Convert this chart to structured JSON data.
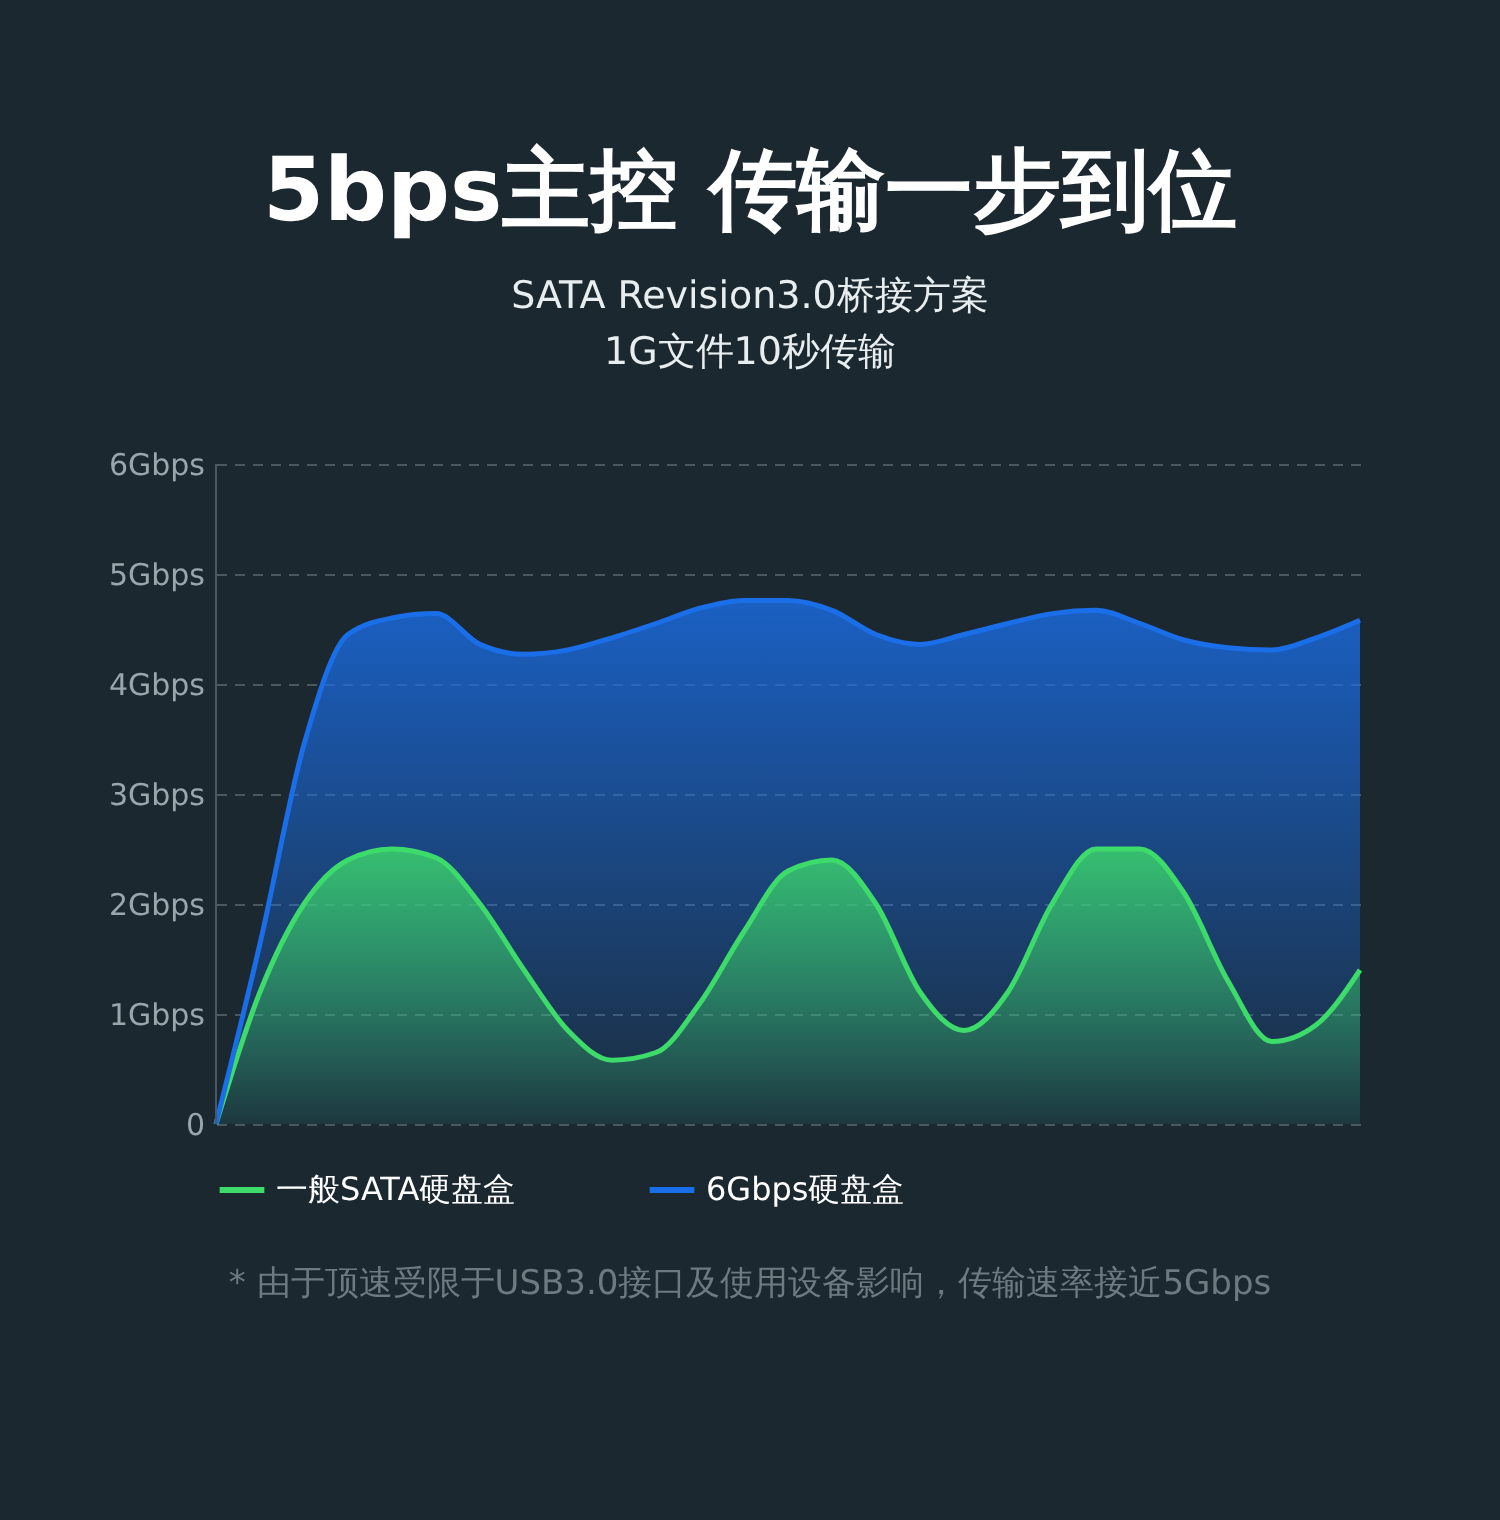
{
  "chart_data": {
    "type": "area",
    "title": "5bps主控  传输一步到位",
    "subtitle": "SATA Revision3.0桥接方案\n1G文件10秒传输",
    "categories": [
      null,
      null,
      null,
      null,
      null,
      null,
      null,
      null,
      null,
      null,
      null,
      null,
      null,
      null,
      null,
      null,
      null,
      null,
      null,
      null,
      null,
      null,
      null,
      null,
      null,
      null,
      null
    ],
    "series": [
      {
        "name": "一般SATA硬盘盒",
        "color": "#3ddc6a",
        "values": [
          0,
          1.2,
          2.0,
          2.4,
          2.5,
          2.42,
          2.0,
          1.4,
          0.85,
          0.58,
          0.65,
          1.1,
          1.75,
          2.3,
          2.4,
          2.0,
          1.2,
          0.85,
          1.2,
          2.0,
          2.5,
          2.5,
          2.1,
          1.3,
          0.75,
          0.9,
          1.4
        ]
      },
      {
        "name": "6Gbps硬盘盒",
        "color": "#1a6ee8",
        "values": [
          0,
          1.64,
          3.45,
          4.45,
          4.6,
          4.64,
          4.36,
          4.27,
          4.31,
          4.42,
          4.55,
          4.69,
          4.76,
          4.76,
          4.67,
          4.45,
          4.36,
          4.45,
          4.55,
          4.64,
          4.67,
          4.55,
          4.4,
          4.33,
          4.31,
          4.42,
          4.58
        ]
      }
    ],
    "ylim": [
      0,
      6
    ],
    "yticks": [
      0,
      {
        "value": 1,
        "label": "1Gbps"
      },
      {
        "value": 2,
        "label": "2Gbps"
      },
      {
        "value": 3,
        "label": "3Gbps"
      },
      {
        "value": 4,
        "label": "4Gbps"
      },
      {
        "value": 5,
        "label": "5Gbps"
      },
      {
        "value": 6,
        "label": "6Gbps"
      }
    ],
    "grid": "y",
    "legend": "bottom",
    "annotations": [
      "* 由于顶速受限于USB3.0接口及使用设备影响，传输速率接近5Gbps"
    ]
  }
}
